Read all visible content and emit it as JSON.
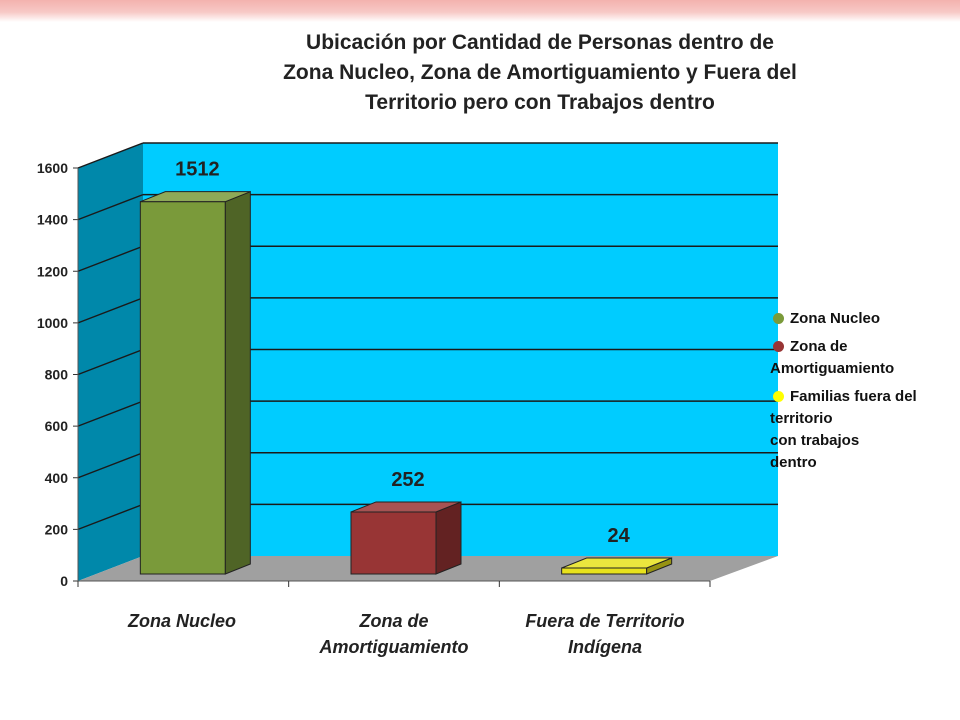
{
  "chart_data": {
    "type": "bar",
    "title_lines": [
      "Ubicación por Cantidad de Personas dentro de",
      "Zona Nucleo, Zona de Amortiguamiento y Fuera del",
      "Territorio pero con Trabajos dentro"
    ],
    "categories": [
      [
        "Zona Nucleo"
      ],
      [
        "Zona de",
        "Amortiguamiento"
      ],
      [
        "Fuera de Territorio",
        "Indígena"
      ]
    ],
    "values": [
      1512,
      252,
      24
    ],
    "data_labels": [
      "1512",
      "252",
      "24"
    ],
    "bar_colors": [
      "#7a9a3a",
      "#983535",
      "#e8e21c"
    ],
    "ylim": [
      0,
      1600
    ],
    "yticks": [
      "0",
      "200",
      "400",
      "600",
      "800",
      "1000",
      "1200",
      "1400",
      "1600"
    ],
    "grid": true,
    "legend_position": "right",
    "legend": [
      {
        "label": "Zona Nucleo",
        "color": "#7a9a3a"
      },
      {
        "label": "Zona de\nAmortiguamiento",
        "color": "#983535"
      },
      {
        "label": "Familias fuera del\nterritorio\n     con trabajos\ndentro",
        "color": "#ffff00"
      }
    ],
    "colors": {
      "back_wall": "#00ccff",
      "side_wall": "#0088aa",
      "floor": "#a0a0a0",
      "grid": "#1a1a1a"
    }
  }
}
